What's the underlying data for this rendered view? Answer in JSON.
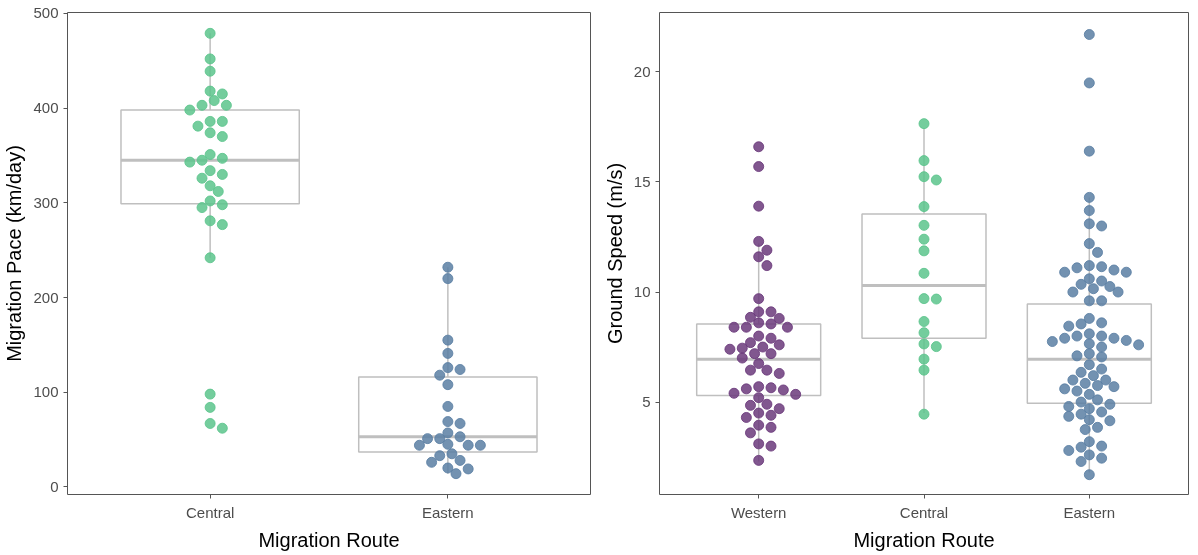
{
  "chart_data": [
    {
      "type": "box",
      "xlabel": "Migration Route",
      "ylabel": "Migration Pace (km/day)",
      "categories": [
        "Central",
        "Eastern"
      ],
      "ylim": [
        -8,
        501
      ],
      "yticks": [
        0,
        100,
        200,
        300,
        400,
        500
      ],
      "grid": false,
      "marker": "circle",
      "series": [
        {
          "color": "#bfbfbf",
          "boxes": [
            {
              "low": 242,
              "q1": 299,
              "median": 345,
              "q3": 398,
              "high": 479
            },
            {
              "low": 14,
              "q1": 37,
              "median": 53,
              "q3": 116,
              "high": 232
            }
          ]
        },
        {
          "type": "scatter",
          "color": "#5cc48c",
          "x": [
            "Central",
            "Central",
            "Central",
            "Central",
            "Central",
            "Central",
            "Central",
            "Central",
            "Central",
            "Central",
            "Central",
            "Central",
            "Central",
            "Central",
            "Central",
            "Central",
            "Central",
            "Central",
            "Central",
            "Central",
            "Central",
            "Central",
            "Central",
            "Central",
            "Central",
            "Central",
            "Central",
            "Central",
            "Central",
            "Central",
            "Central",
            "Central",
            "Central"
          ],
          "values": [
            479,
            452,
            439,
            418,
            415,
            408,
            403,
            403,
            398,
            386,
            386,
            381,
            374,
            370,
            351,
            347,
            345,
            343,
            334,
            330,
            326,
            318,
            312,
            302,
            298,
            295,
            281,
            277,
            242,
            98,
            84,
            67,
            62
          ]
        },
        {
          "type": "scatter",
          "color": "#5a7fa3",
          "x": [
            "Eastern",
            "Eastern",
            "Eastern",
            "Eastern",
            "Eastern",
            "Eastern",
            "Eastern",
            "Eastern",
            "Eastern",
            "Eastern",
            "Eastern",
            "Eastern",
            "Eastern",
            "Eastern",
            "Eastern",
            "Eastern",
            "Eastern",
            "Eastern",
            "Eastern",
            "Eastern",
            "Eastern",
            "Eastern",
            "Eastern",
            "Eastern",
            "Eastern",
            "Eastern"
          ],
          "values": [
            232,
            220,
            155,
            141,
            126,
            124,
            118,
            108,
            85,
            69,
            67,
            57,
            53,
            51,
            51,
            45,
            44,
            44,
            44,
            35,
            33,
            28,
            26,
            20,
            19,
            14
          ]
        }
      ]
    },
    {
      "type": "box",
      "xlabel": "Migration Route",
      "ylabel": "Ground Speed (m/s)",
      "categories": [
        "Western",
        "Central",
        "Eastern"
      ],
      "ylim": [
        0.8,
        22.7
      ],
      "yticks": [
        5,
        10,
        15,
        20
      ],
      "grid": false,
      "marker": "circle",
      "series": [
        {
          "color": "#bfbfbf",
          "boxes": [
            {
              "low": 2.3,
              "q1": 5.3,
              "median": 6.95,
              "q3": 8.55,
              "high": 12.2
            },
            {
              "low": 4.5,
              "q1": 7.9,
              "median": 10.3,
              "q3": 13.55,
              "high": 17.45
            },
            {
              "low": 1.8,
              "q1": 4.95,
              "median": 6.95,
              "q3": 9.45,
              "high": 14.3
            }
          ]
        },
        {
          "type": "scatter",
          "color": "#6b3a7b",
          "x": [
            "Western",
            "Western",
            "Western",
            "Western",
            "Western",
            "Western",
            "Western",
            "Western",
            "Western",
            "Western",
            "Western",
            "Western",
            "Western",
            "Western",
            "Western",
            "Western",
            "Western",
            "Western",
            "Western",
            "Western",
            "Western",
            "Western",
            "Western",
            "Western",
            "Western",
            "Western",
            "Western",
            "Western",
            "Western",
            "Western",
            "Western",
            "Western",
            "Western",
            "Western",
            "Western",
            "Western",
            "Western",
            "Western",
            "Western",
            "Western",
            "Western",
            "Western",
            "Western",
            "Western",
            "Western",
            "Western",
            "Western",
            "Western",
            "Western",
            "Western"
          ],
          "values": [
            16.6,
            15.7,
            13.9,
            12.3,
            11.9,
            11.6,
            11.2,
            9.7,
            9.1,
            9.1,
            8.85,
            8.8,
            8.6,
            8.55,
            8.4,
            8.4,
            8.4,
            8.0,
            7.9,
            7.7,
            7.6,
            7.5,
            7.45,
            7.4,
            7.2,
            7.2,
            7.0,
            6.75,
            6.45,
            6.45,
            6.3,
            5.7,
            5.65,
            5.6,
            5.55,
            5.4,
            5.35,
            5.2,
            4.9,
            4.85,
            4.7,
            4.5,
            4.4,
            4.3,
            3.95,
            3.85,
            3.6,
            3.1,
            3.0,
            2.35
          ]
        },
        {
          "type": "scatter",
          "color": "#5cc48c",
          "x": [
            "Central",
            "Central",
            "Central",
            "Central",
            "Central",
            "Central",
            "Central",
            "Central",
            "Central",
            "Central",
            "Central",
            "Central",
            "Central",
            "Central",
            "Central",
            "Central",
            "Central",
            "Central"
          ],
          "values": [
            17.65,
            15.97,
            15.24,
            15.09,
            13.88,
            13.03,
            12.4,
            11.87,
            10.85,
            9.7,
            9.68,
            8.66,
            8.15,
            7.64,
            7.52,
            6.95,
            6.45,
            4.45
          ]
        },
        {
          "type": "scatter",
          "color": "#5a7fa3",
          "x": [
            "Eastern",
            "Eastern",
            "Eastern",
            "Eastern",
            "Eastern",
            "Eastern",
            "Eastern",
            "Eastern",
            "Eastern",
            "Eastern",
            "Eastern",
            "Eastern",
            "Eastern",
            "Eastern",
            "Eastern",
            "Eastern",
            "Eastern",
            "Eastern",
            "Eastern",
            "Eastern",
            "Eastern",
            "Eastern",
            "Eastern",
            "Eastern",
            "Eastern",
            "Eastern",
            "Eastern",
            "Eastern",
            "Eastern",
            "Eastern",
            "Eastern",
            "Eastern",
            "Eastern",
            "Eastern",
            "Eastern",
            "Eastern",
            "Eastern",
            "Eastern",
            "Eastern",
            "Eastern",
            "Eastern",
            "Eastern",
            "Eastern",
            "Eastern",
            "Eastern",
            "Eastern",
            "Eastern",
            "Eastern",
            "Eastern",
            "Eastern",
            "Eastern",
            "Eastern",
            "Eastern",
            "Eastern",
            "Eastern",
            "Eastern",
            "Eastern",
            "Eastern",
            "Eastern",
            "Eastern",
            "Eastern",
            "Eastern",
            "Eastern",
            "Eastern",
            "Eastern",
            "Eastern",
            "Eastern",
            "Eastern",
            "Eastern",
            "Eastern",
            "Eastern",
            "Eastern",
            "Eastern"
          ],
          "values": [
            21.7,
            19.5,
            16.4,
            14.3,
            13.7,
            13.1,
            13.0,
            12.2,
            11.8,
            11.2,
            11.15,
            11.1,
            11.0,
            10.9,
            10.9,
            10.6,
            10.5,
            10.35,
            10.25,
            10.15,
            10.0,
            10.0,
            9.6,
            9.6,
            8.8,
            8.6,
            8.55,
            8.45,
            8.1,
            8.0,
            8.0,
            7.9,
            7.9,
            7.8,
            7.75,
            7.65,
            7.6,
            7.5,
            7.2,
            7.1,
            7.05,
            6.7,
            6.5,
            6.35,
            6.2,
            6.0,
            6.0,
            5.85,
            5.75,
            5.7,
            5.6,
            5.5,
            5.35,
            5.1,
            5.0,
            4.9,
            4.8,
            4.7,
            4.55,
            4.45,
            4.35,
            4.2,
            4.15,
            3.85,
            3.75,
            3.2,
            3.0,
            2.95,
            2.8,
            2.6,
            2.45,
            2.3,
            1.7
          ]
        }
      ]
    }
  ]
}
